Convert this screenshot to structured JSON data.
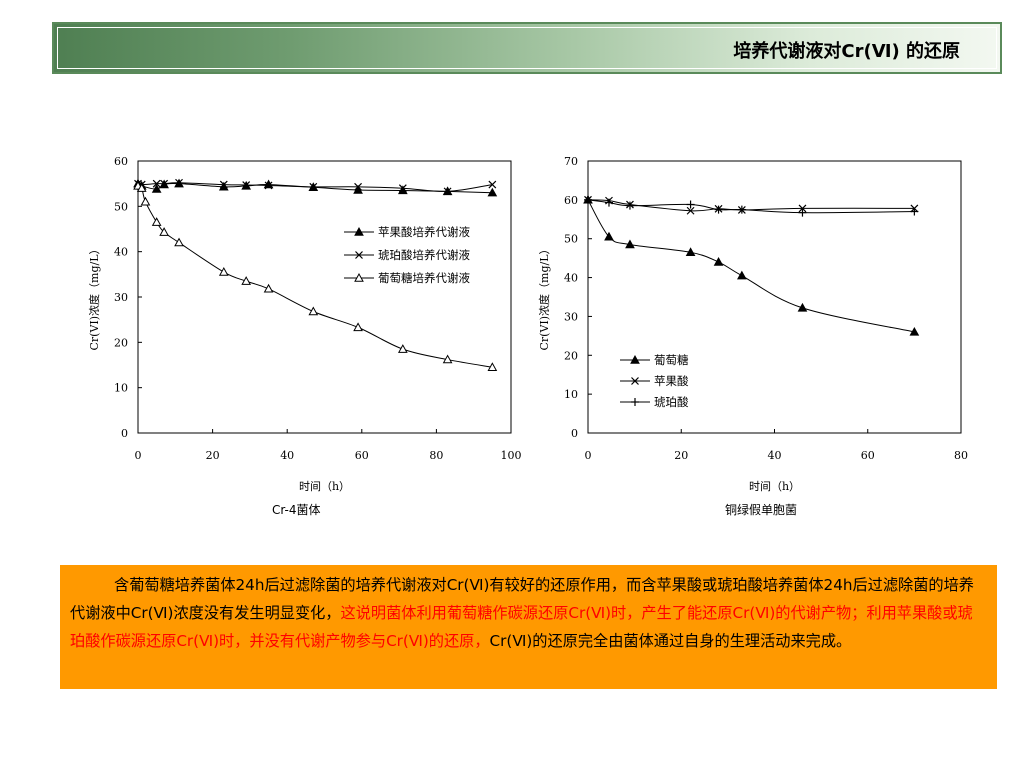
{
  "title": "培养代谢液对Cr(Ⅵ) 的还原",
  "captions": {
    "left": "Cr-4菌体",
    "right": "铜绿假单胞菌"
  },
  "note": {
    "part1": "含葡萄糖培养菌体24h后过滤除菌的培养代谢液对Cr(Ⅵ)有较好的还原作用，而含苹果酸或琥珀酸培养菌体24h后过滤除菌的培养代谢液中Cr(Ⅵ)浓度没有发生明显变化，",
    "part2": "这说明菌体利用葡萄糖作碳源还原Cr(Ⅵ)时，产生了能还原Cr(Ⅵ)的代谢产物；利用苹果酸或琥珀酸作碳源还原Cr(Ⅵ)时，并没有代谢产物参与Cr(Ⅵ)的还原，",
    "part3": "Cr(Ⅵ)的还原完全由菌体通过自身的生理活动来完成。",
    "highlight_color": "#ff0000"
  },
  "chart_data": [
    {
      "type": "line",
      "xlabel": "时间（h）",
      "ylabel": "Cr(VI)浓度（mg/L）",
      "xlim": [
        0,
        100
      ],
      "ylim": [
        0,
        60
      ],
      "xticks": [
        0,
        20,
        40,
        60,
        80,
        100
      ],
      "yticks": [
        0,
        10,
        20,
        30,
        40,
        50,
        60
      ],
      "legend_position": "right-middle",
      "series": [
        {
          "name": "苹果酸培养代谢液",
          "marker": "filled-triangle",
          "x": [
            0,
            1,
            5,
            7,
            11,
            23,
            29,
            35,
            47,
            59,
            71,
            83,
            95
          ],
          "y": [
            55,
            54.5,
            53.8,
            54.8,
            55,
            54.3,
            54.5,
            54.8,
            54.2,
            53.6,
            53.5,
            53.3,
            53
          ]
        },
        {
          "name": "琥珀酸培养代谢液",
          "marker": "x",
          "x": [
            0,
            1,
            5,
            7,
            11,
            23,
            29,
            35,
            47,
            59,
            71,
            83,
            95
          ],
          "y": [
            55,
            54.8,
            55,
            55,
            55.2,
            54.8,
            54.7,
            54.6,
            54.3,
            54.3,
            54,
            53.3,
            54.8
          ]
        },
        {
          "name": "葡萄糖培养代谢液",
          "marker": "open-triangle",
          "x": [
            0,
            1,
            2,
            5,
            7,
            11,
            23,
            29,
            35,
            47,
            59,
            71,
            83,
            95
          ],
          "y": [
            54.5,
            54,
            51,
            46.5,
            44.3,
            42,
            35.5,
            33.5,
            31.8,
            26.8,
            23.3,
            18.5,
            16.2,
            14.5
          ]
        }
      ]
    },
    {
      "type": "line",
      "xlabel": "时间（h）",
      "ylabel": "Cr(VI)浓度（mg/L）",
      "xlim": [
        0,
        80
      ],
      "ylim": [
        0,
        70
      ],
      "xticks": [
        0,
        20,
        40,
        60,
        80
      ],
      "yticks": [
        0,
        10,
        20,
        30,
        40,
        50,
        60,
        70
      ],
      "legend_position": "bottom-middle",
      "series": [
        {
          "name": "葡萄糖",
          "marker": "filled-triangle",
          "x": [
            0,
            4.5,
            9,
            22,
            28,
            33,
            46,
            70
          ],
          "y": [
            60,
            50.5,
            48.5,
            46.5,
            44,
            40.5,
            32.2,
            26
          ]
        },
        {
          "name": "苹果酸",
          "marker": "x",
          "x": [
            0,
            4.5,
            9,
            22,
            28,
            33,
            46,
            70
          ],
          "y": [
            60,
            59.8,
            58.8,
            57.2,
            57.7,
            57.4,
            57.8,
            57.8
          ]
        },
        {
          "name": "琥珀酸",
          "marker": "plus",
          "x": [
            0,
            4.5,
            9,
            22,
            28,
            33,
            46,
            70
          ],
          "y": [
            60,
            59.3,
            58.5,
            58.8,
            57.5,
            57.5,
            56.7,
            57
          ]
        }
      ]
    }
  ]
}
